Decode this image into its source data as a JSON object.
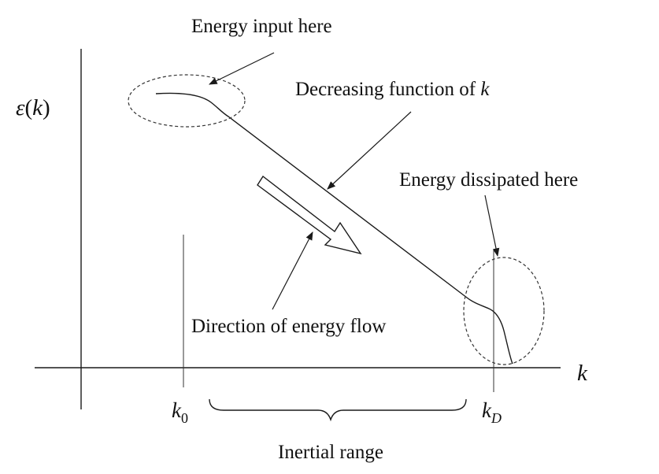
{
  "labels": {
    "energy_input": "Energy input here",
    "decreasing_function": "Decreasing function of ",
    "decreasing_function_var": "k",
    "energy_dissipated": "Energy dissipated here",
    "direction_of_flow": "Direction of energy flow",
    "inertial_range": "Inertial range"
  },
  "axes": {
    "y_label_symbol": "ε",
    "y_label_open": "(",
    "y_label_var": "k",
    "y_label_close": ")",
    "x_label": "k"
  },
  "ticks": {
    "k0_base": "k",
    "k0_sub": "0",
    "kD_base": "k",
    "kD_sub": "D"
  },
  "colors": {
    "line": "#1a1a1a",
    "text": "#111111",
    "background": "#ffffff"
  }
}
